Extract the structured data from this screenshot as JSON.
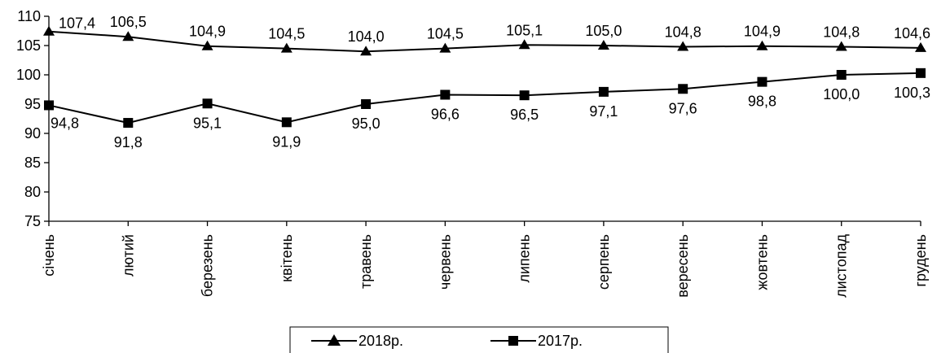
{
  "chart_data": {
    "type": "line",
    "categories": [
      "січень",
      "лютий",
      "березень",
      "квітень",
      "травень",
      "червень",
      "липень",
      "серпень",
      "вересень",
      "жовтень",
      "листопад",
      "грудень"
    ],
    "series": [
      {
        "name": "2018р.",
        "marker": "triangle",
        "values": [
          107.4,
          106.5,
          104.9,
          104.5,
          104.0,
          104.5,
          105.1,
          105.0,
          104.8,
          104.9,
          104.8,
          104.6
        ],
        "labels": [
          "107,4",
          "106,5",
          "104,9",
          "104,5",
          "104,0",
          "104,5",
          "105,1",
          "105,0",
          "104,8",
          "104,9",
          "104,8",
          "104,6"
        ]
      },
      {
        "name": "2017р.",
        "marker": "square",
        "values": [
          94.8,
          91.8,
          95.1,
          91.9,
          95.0,
          96.6,
          96.5,
          97.1,
          97.6,
          98.8,
          100.0,
          100.3
        ],
        "labels": [
          "94,8",
          "91,8",
          "95,1",
          "91,9",
          "95,0",
          "96,6",
          "96,5",
          "97,1",
          "97,6",
          "98,8",
          "100,0",
          "100,3"
        ]
      }
    ],
    "ylim": [
      75,
      110
    ],
    "yticks": [
      "75",
      "80",
      "85",
      "90",
      "95",
      "100",
      "105",
      "110"
    ],
    "grid": false,
    "legend_position": "bottom",
    "line_color": "#000000"
  }
}
